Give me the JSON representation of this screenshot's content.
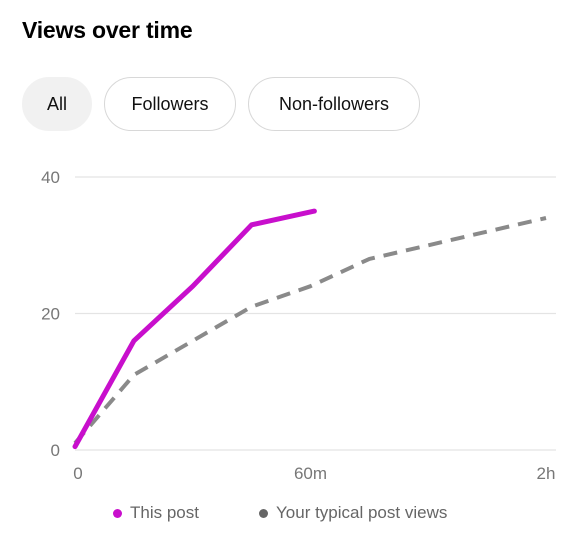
{
  "title": "Views over time",
  "tabs": [
    {
      "label": "All",
      "active": true
    },
    {
      "label": "Followers",
      "active": false
    },
    {
      "label": "Non-followers",
      "active": false
    }
  ],
  "colors": {
    "this_post": "#c80fcc",
    "typical": "#8a8a8a"
  },
  "chart_data": {
    "type": "line",
    "title": "",
    "xlabel": "",
    "ylabel": "",
    "y_ticks": [
      "0",
      "20",
      "40"
    ],
    "ylim": [
      0,
      40
    ],
    "x_tick_labels": [
      "0",
      "60m",
      "2h"
    ],
    "x_ticks_minutes": [
      0,
      60,
      120
    ],
    "xlim_minutes": [
      0,
      120
    ],
    "grid": "horizontal",
    "legend_position": "bottom",
    "series": [
      {
        "name": "This post",
        "style": "solid",
        "x_minutes": [
          0,
          15,
          30,
          45,
          61
        ],
        "values": [
          0.5,
          16,
          24,
          33,
          35
        ]
      },
      {
        "name": "Your typical post views",
        "style": "dashed",
        "x_minutes": [
          0,
          15,
          30,
          45,
          60,
          75,
          90,
          105,
          120
        ],
        "values": [
          1,
          11,
          16,
          21,
          24,
          28,
          30,
          32,
          34
        ]
      }
    ]
  }
}
